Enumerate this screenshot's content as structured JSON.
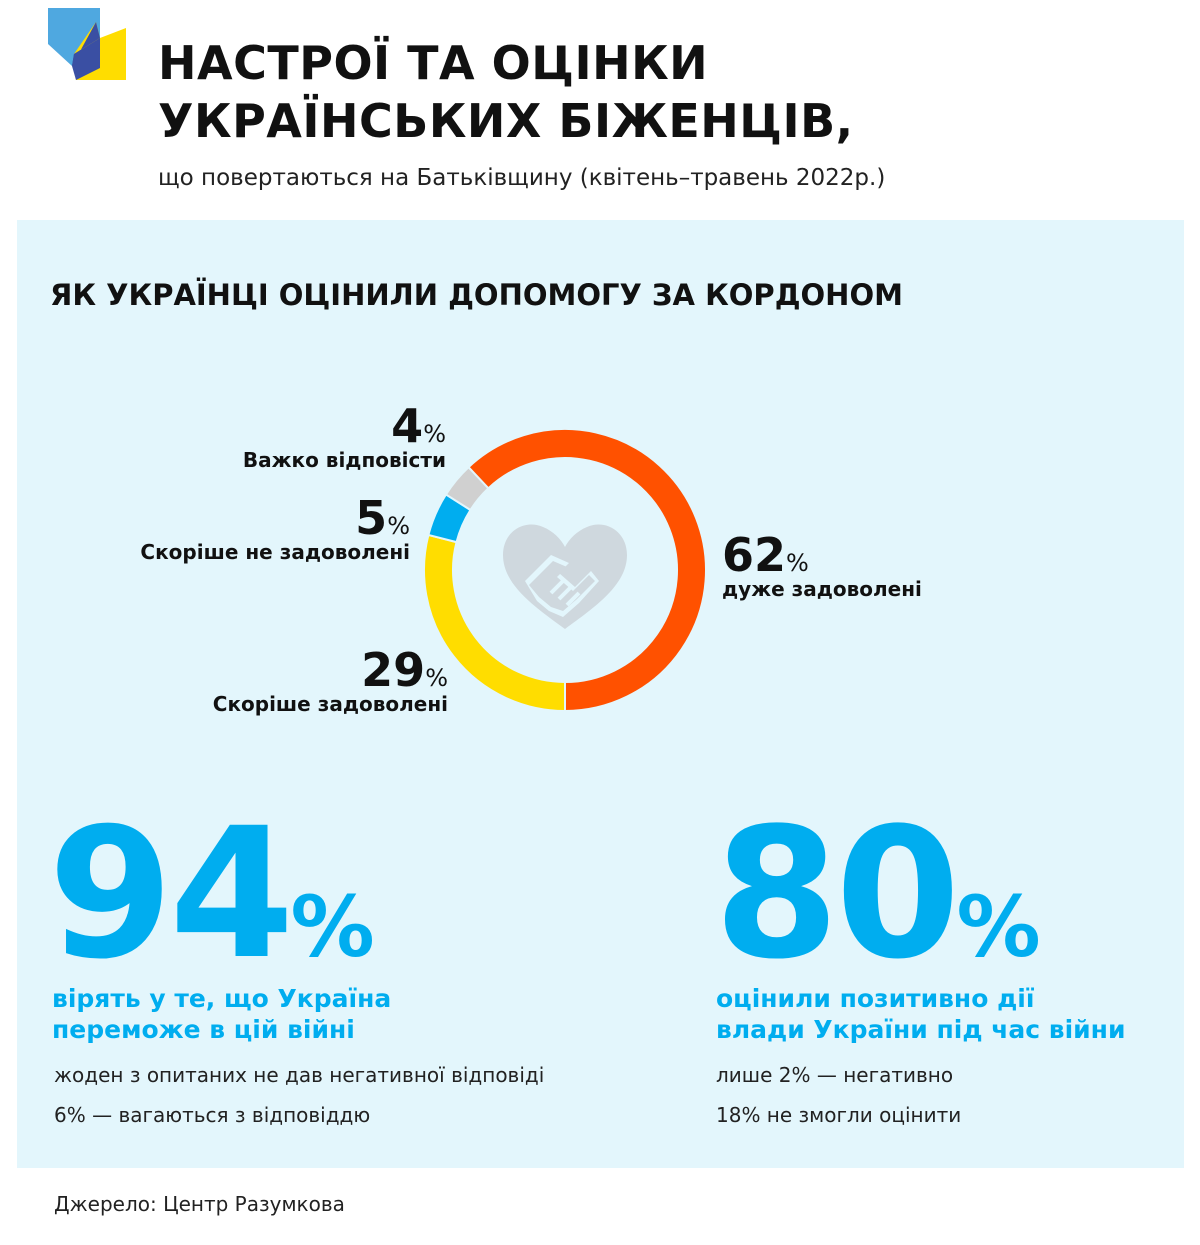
{
  "header": {
    "title_line1": "НАСТРОЇ ТА ОЦІНКИ",
    "title_line2": "УКРАЇНСЬКИХ БІЖЕНЦІВ,",
    "subtitle": "що повертаються на Батьківщину (квітень–травень 2022р.)"
  },
  "section_title": "ЯК УКРАЇНЦІ ОЦІНИЛИ ДОПОМОГУ ЗА КОРДОНОМ",
  "chart_data": {
    "type": "pie",
    "title": "",
    "categories": [
      "дуже задоволені",
      "Скоріше задоволені",
      "Скоріше не задоволені",
      "Важко відповісти"
    ],
    "values": [
      62,
      29,
      5,
      4
    ],
    "unit": "%",
    "colors": [
      "#ff5100",
      "#ffdd00",
      "#00adef",
      "#d0d0d0"
    ],
    "labels": [
      {
        "value": "62",
        "unit": "%",
        "caption": "дуже задоволені"
      },
      {
        "value": "29",
        "unit": "%",
        "caption": "Скоріше задоволені"
      },
      {
        "value": "5",
        "unit": "%",
        "caption": "Скоріше не задоволені"
      },
      {
        "value": "4",
        "unit": "%",
        "caption": "Важко відповісти"
      }
    ],
    "center_icon": "handshake-heart-icon"
  },
  "stats": [
    {
      "value": "94",
      "unit": "%",
      "headline_line1": "вірять у те, що Україна",
      "headline_line2": "переможе в цій війні",
      "note1": "жоден з опитаних не дав негативної відповіді",
      "note2": "6% — вагаються з відповіддю"
    },
    {
      "value": "80",
      "unit": "%",
      "headline_line1": "оцінили позитивно дії",
      "headline_line2": "влади України під час війни",
      "note1": "лише 2% — негативно",
      "note2": "18% не змогли оцінити"
    }
  ],
  "source": "Джерело: Центр Разумкова",
  "colors": {
    "accent_blue": "#00adef",
    "panel_bg": "#e3f6fc",
    "logo_light_blue": "#4fa8e0",
    "logo_dark_blue": "#3a4fa3",
    "logo_yellow": "#ffdd00"
  }
}
